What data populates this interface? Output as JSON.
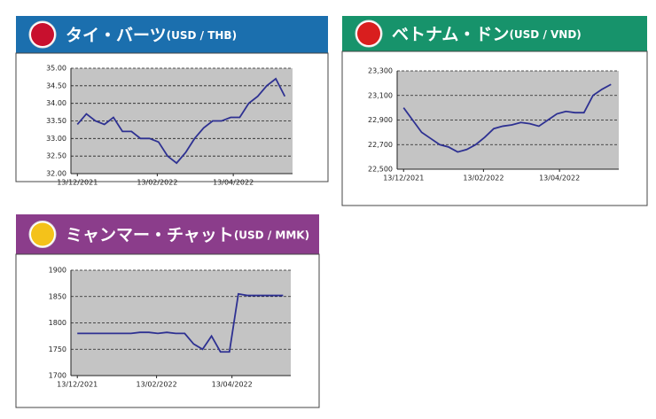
{
  "chart_data": [
    {
      "type": "line",
      "title": "タイ・バーツ",
      "subtitle": "(USD / THB)",
      "x": [
        "2021-12-13",
        "2021-12-20",
        "2021-12-27",
        "2022-01-03",
        "2022-01-10",
        "2022-01-17",
        "2022-01-24",
        "2022-01-31",
        "2022-02-07",
        "2022-02-14",
        "2022-02-21",
        "2022-02-28",
        "2022-03-07",
        "2022-03-14",
        "2022-03-21",
        "2022-03-28",
        "2022-04-04",
        "2022-04-11",
        "2022-04-18",
        "2022-04-25",
        "2022-05-02",
        "2022-05-09",
        "2022-05-16",
        "2022-05-23"
      ],
      "series": [
        {
          "color": "#2e3192",
          "values": [
            33.4,
            33.7,
            33.5,
            33.4,
            33.6,
            33.2,
            33.2,
            33.0,
            33.0,
            32.9,
            32.5,
            32.3,
            32.6,
            33.0,
            33.3,
            33.5,
            33.5,
            33.6,
            33.6,
            34.0,
            34.2,
            34.5,
            34.7,
            34.2
          ]
        }
      ],
      "xlim": [
        "2021-12-08",
        "2022-05-29"
      ],
      "xticks": [
        {
          "value": "2021-12-13",
          "label": "13/12/2021"
        },
        {
          "value": "2022-02-13",
          "label": "13/02/2022"
        },
        {
          "value": "2022-04-13",
          "label": "13/04/2022"
        }
      ],
      "ylim": [
        32,
        35
      ],
      "yticks": [
        {
          "value": 32,
          "label": "32.00"
        },
        {
          "value": 32.5,
          "label": "32.50"
        },
        {
          "value": 33,
          "label": "33.00"
        },
        {
          "value": 33.5,
          "label": "33.50"
        },
        {
          "value": 34,
          "label": "34.00"
        },
        {
          "value": 34.5,
          "label": "34.50"
        },
        {
          "value": 35,
          "label": "35.00"
        }
      ],
      "grid": true,
      "header_color": "#1b6fae"
    },
    {
      "type": "line",
      "title": "ベトナム・ドン",
      "subtitle": "(USD / VND)",
      "x": [
        "2021-12-13",
        "2021-12-20",
        "2021-12-27",
        "2022-01-03",
        "2022-01-10",
        "2022-01-17",
        "2022-01-24",
        "2022-01-31",
        "2022-02-07",
        "2022-02-14",
        "2022-02-21",
        "2022-02-28",
        "2022-03-07",
        "2022-03-14",
        "2022-03-21",
        "2022-03-28",
        "2022-04-04",
        "2022-04-11",
        "2022-04-18",
        "2022-04-25",
        "2022-05-02",
        "2022-05-09",
        "2022-05-16",
        "2022-05-23"
      ],
      "series": [
        {
          "color": "#2e3192",
          "values": [
            23000,
            22900,
            22800,
            22750,
            22700,
            22680,
            22640,
            22660,
            22700,
            22760,
            22830,
            22850,
            22860,
            22880,
            22870,
            22850,
            22900,
            22950,
            22970,
            22960,
            22960,
            23100,
            23150,
            23190
          ]
        }
      ],
      "xlim": [
        "2021-12-08",
        "2022-05-29"
      ],
      "xticks": [
        {
          "value": "2021-12-13",
          "label": "13/12/2021"
        },
        {
          "value": "2022-02-13",
          "label": "13/02/2022"
        },
        {
          "value": "2022-04-13",
          "label": "13/04/2022"
        }
      ],
      "ylim": [
        22500,
        23300
      ],
      "yticks": [
        {
          "value": 22500,
          "label": "22,500"
        },
        {
          "value": 22700,
          "label": "22,700"
        },
        {
          "value": 22900,
          "label": "22,900"
        },
        {
          "value": 23100,
          "label": "23,100"
        },
        {
          "value": 23300,
          "label": "23,300"
        }
      ],
      "grid": true,
      "header_color": "#17936b"
    },
    {
      "type": "line",
      "title": "ミャンマー・チャット",
      "subtitle": "(USD / MMK)",
      "x": [
        "2021-12-13",
        "2021-12-20",
        "2021-12-27",
        "2022-01-03",
        "2022-01-10",
        "2022-01-17",
        "2022-01-24",
        "2022-01-31",
        "2022-02-07",
        "2022-02-14",
        "2022-02-21",
        "2022-02-28",
        "2022-03-07",
        "2022-03-14",
        "2022-03-21",
        "2022-03-28",
        "2022-04-04",
        "2022-04-11",
        "2022-04-18",
        "2022-04-25",
        "2022-05-02",
        "2022-05-09",
        "2022-05-16",
        "2022-05-23"
      ],
      "series": [
        {
          "color": "#2e3192",
          "values": [
            1780,
            1780,
            1780,
            1780,
            1780,
            1780,
            1780,
            1782,
            1782,
            1780,
            1782,
            1780,
            1780,
            1760,
            1750,
            1775,
            1745,
            1745,
            1855,
            1852,
            1852,
            1852,
            1852,
            1852
          ]
        }
      ],
      "xlim": [
        "2021-12-08",
        "2022-05-29"
      ],
      "xticks": [
        {
          "value": "2021-12-13",
          "label": "13/12/2021"
        },
        {
          "value": "2022-02-13",
          "label": "13/02/2022"
        },
        {
          "value": "2022-04-13",
          "label": "13/04/2022"
        }
      ],
      "ylim": [
        1700,
        1900
      ],
      "yticks": [
        1700,
        1750,
        1800,
        1850,
        1900
      ],
      "grid": true,
      "header_color": "#8b3d8b"
    }
  ]
}
